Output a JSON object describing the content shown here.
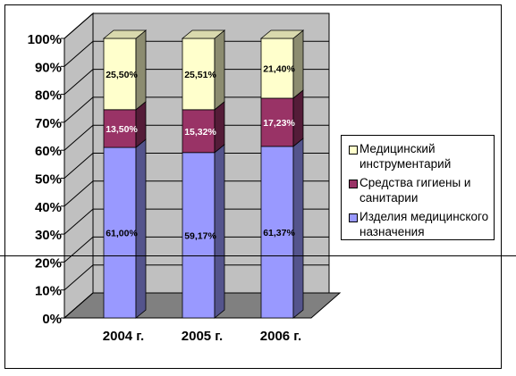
{
  "chart_data": {
    "type": "bar",
    "subtype": "stacked-100-3d",
    "categories": [
      "2004 г.",
      "2005 г.",
      "2006 г."
    ],
    "series": [
      {
        "name": "Изделия медицинского назначения",
        "values": [
          61.0,
          59.17,
          61.37
        ],
        "labels": [
          "61,00%",
          "59,17%",
          "61,37%"
        ],
        "color": "#9999ff"
      },
      {
        "name": "Средства гигиены и санитарии",
        "values": [
          13.5,
          15.32,
          17.23
        ],
        "labels": [
          "13,50%",
          "15,32%",
          "17,23%"
        ],
        "color": "#993366"
      },
      {
        "name": "Медицинский инструментарий",
        "values": [
          25.5,
          25.51,
          21.4
        ],
        "labels": [
          "25,50%",
          "25,51%",
          "21,40%"
        ],
        "color": "#ffffcc"
      }
    ],
    "ylim": [
      0,
      100
    ],
    "yticks": [
      "0%",
      "10%",
      "20%",
      "30%",
      "40%",
      "50%",
      "60%",
      "70%",
      "80%",
      "90%",
      "100%"
    ],
    "grid": true,
    "legend_position": "right"
  },
  "legend": {
    "items": [
      {
        "label": "Медицинский инструментарий",
        "color": "#ffffcc"
      },
      {
        "label": "Средства гигиены и санитарии",
        "color": "#993366"
      },
      {
        "label": "Изделия медицинского назначения",
        "color": "#9999ff"
      }
    ]
  },
  "colors": {
    "wall": "#c0c0c0",
    "floor": "#808080",
    "grid": "#000000"
  }
}
